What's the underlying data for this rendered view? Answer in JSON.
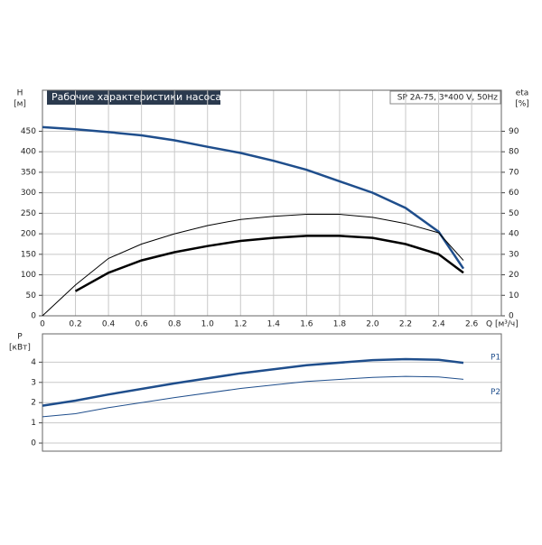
{
  "header": {
    "title": "Рабочие характеристики насоса",
    "model": "SP 2A-75, 3*400 V, 50Hz"
  },
  "chart_data": [
    {
      "type": "line",
      "ylabel": "H",
      "yunit": "[м]",
      "y2label": "eta",
      "y2unit": "[%]",
      "xlabel": "Q [м³/ч]",
      "xlim": [
        0,
        2.78
      ],
      "ylim": [
        0,
        550
      ],
      "y2lim": [
        0,
        110
      ],
      "xticks": [
        0,
        0.2,
        0.4,
        0.6,
        0.8,
        {
          "value": 1,
          "label": "1.0"
        },
        1.2,
        1.4,
        1.6,
        1.8,
        {
          "value": 2,
          "label": "2.0"
        },
        2.2,
        2.4,
        2.6
      ],
      "yticks": [
        0,
        50,
        100,
        150,
        200,
        250,
        300,
        350,
        400,
        450
      ],
      "y2ticks": [
        0,
        10,
        20,
        30,
        40,
        50,
        60,
        70,
        80,
        90
      ],
      "grid": true,
      "x": [
        0,
        0.2,
        0.4,
        0.6,
        0.8,
        1.0,
        1.2,
        1.4,
        1.6,
        1.8,
        2.0,
        2.2,
        2.4,
        2.55
      ],
      "series": [
        {
          "color": "#1f4e8c",
          "values": [
            460,
            455,
            448,
            440,
            428,
            412,
            397,
            378,
            356,
            328,
            300,
            263,
            205,
            115
          ]
        },
        {
          "color": "#000000",
          "axis": "y2",
          "values": [
            0,
            15,
            28,
            35,
            40,
            44,
            47,
            48.5,
            49.5,
            49.5,
            48,
            45,
            40.5,
            27
          ]
        },
        {
          "color": "#000000",
          "axis": "y2",
          "values": [
            null,
            12,
            21,
            27,
            31,
            34,
            36.5,
            38,
            39,
            39,
            38,
            35,
            30,
            21
          ]
        }
      ]
    },
    {
      "type": "line",
      "ylabel": "P",
      "yunit": "[кВт]",
      "xlim": [
        0,
        2.78
      ],
      "ylim": [
        -0.4,
        5.4
      ],
      "yticks": [
        0,
        1,
        2,
        3,
        4
      ],
      "grid": true,
      "x": [
        0,
        0.2,
        0.4,
        0.8,
        1.2,
        1.6,
        2.0,
        2.2,
        2.4,
        2.55
      ],
      "series": [
        {
          "name": "P1",
          "color": "#1f4e8c",
          "values": [
            1.85,
            2.1,
            2.4,
            2.95,
            3.45,
            3.85,
            4.1,
            4.15,
            4.12,
            3.97
          ]
        },
        {
          "name": "P2",
          "color": "#1f4e8c",
          "values": [
            1.3,
            1.45,
            1.75,
            2.25,
            2.7,
            3.05,
            3.25,
            3.3,
            3.27,
            3.15
          ]
        }
      ]
    }
  ]
}
